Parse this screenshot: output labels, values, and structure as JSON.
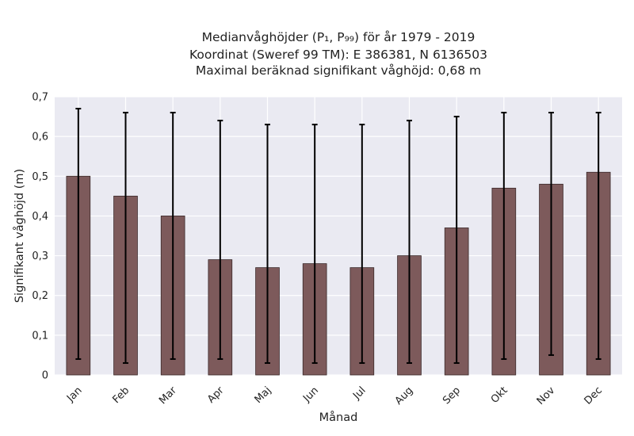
{
  "chart_data": {
    "type": "bar",
    "title_lines": [
      "Medianvåghöjder (P₁, P₉₉) för år 1979 - 2019",
      "Koordinat (Sweref 99 TM): E 386381, N 6136503",
      "Maximal beräknad signifikant våghöjd: 0,68 m"
    ],
    "xlabel": "Månad",
    "ylabel": "Signifikant våghöjd (m)",
    "ylim": [
      0,
      0.7
    ],
    "yticks": [
      0,
      0.1,
      0.2,
      0.3,
      0.4,
      0.5,
      0.6,
      0.7
    ],
    "ytick_labels": [
      "0",
      "0,1",
      "0,2",
      "0,3",
      "0,4",
      "0,5",
      "0,6",
      "0,7"
    ],
    "grid": true,
    "categories": [
      "Jan",
      "Feb",
      "Mar",
      "Apr",
      "Maj",
      "Jun",
      "Jul",
      "Aug",
      "Sep",
      "Okt",
      "Nov",
      "Dec"
    ],
    "values": [
      0.5,
      0.45,
      0.4,
      0.29,
      0.27,
      0.28,
      0.27,
      0.3,
      0.37,
      0.47,
      0.48,
      0.51
    ],
    "error_low": [
      0.04,
      0.03,
      0.04,
      0.04,
      0.03,
      0.03,
      0.03,
      0.03,
      0.03,
      0.04,
      0.05,
      0.04
    ],
    "error_high": [
      0.67,
      0.66,
      0.66,
      0.64,
      0.63,
      0.63,
      0.63,
      0.64,
      0.65,
      0.66,
      0.66,
      0.66
    ],
    "colors": {
      "bar": "#7d5a5b",
      "bar_edge": "#3a2829",
      "plot_bg": "#eaeaf2",
      "grid": "#ffffff",
      "errorbar": "#000000"
    }
  }
}
